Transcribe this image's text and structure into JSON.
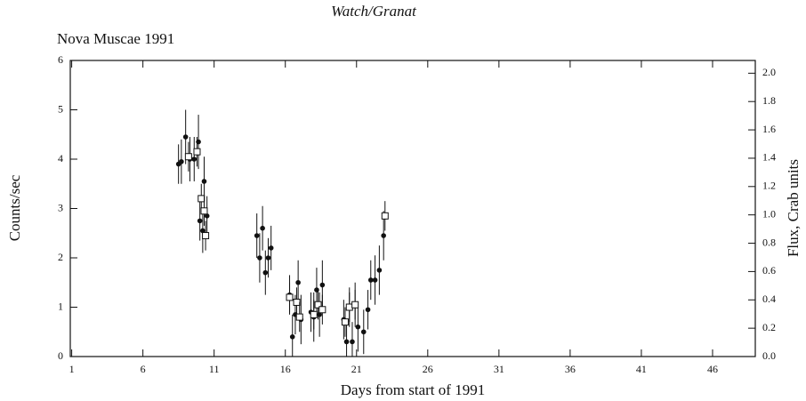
{
  "chart_data": {
    "type": "scatter",
    "title": "Watch/Granat",
    "subtitle": "Nova Muscae 1991",
    "x_label": "Days from start of 1991",
    "y_label": "Counts/sec",
    "y2_label": "Flux, Crab units",
    "xlim": [
      0.9,
      49
    ],
    "xticks": [
      1,
      6,
      11,
      16,
      21,
      26,
      31,
      36,
      41,
      46
    ],
    "ylim": [
      0,
      6
    ],
    "yticks": [
      0,
      1,
      2,
      3,
      4,
      5,
      6
    ],
    "y2lim": [
      0,
      2.09
    ],
    "y2ticks": [
      {
        "value": 0,
        "label": "0.0"
      },
      0.2,
      0.4,
      0.6,
      0.8,
      {
        "value": 1,
        "label": "1.0"
      },
      1.2,
      1.4,
      1.6,
      1.8,
      {
        "value": 2,
        "label": "2.0"
      }
    ],
    "series": [
      {
        "marker": "circle",
        "color": "#111111",
        "x": [
          8.5,
          8.7,
          9.0,
          9.3,
          9.6,
          9.9,
          10.0,
          10.2,
          10.3,
          10.5,
          14.0,
          14.2,
          14.4,
          14.6,
          14.8,
          15.0,
          16.3,
          16.5,
          16.7,
          16.9,
          17.1,
          17.8,
          18.0,
          18.2,
          18.4,
          18.6,
          20.1,
          20.3,
          20.5,
          20.7,
          20.9,
          21.1,
          21.5,
          21.8,
          22.0,
          22.3,
          22.6,
          22.9
        ],
        "values": [
          3.9,
          3.95,
          4.45,
          4.0,
          4.0,
          4.35,
          2.75,
          2.55,
          3.55,
          2.85,
          2.45,
          2.0,
          2.6,
          1.7,
          2.0,
          2.2,
          1.25,
          0.4,
          0.85,
          1.5,
          0.75,
          0.9,
          0.8,
          1.35,
          0.85,
          1.45,
          0.75,
          0.3,
          1.0,
          0.3,
          1.05,
          0.6,
          0.5,
          0.95,
          1.55,
          1.55,
          1.75,
          2.45
        ],
        "errors": [
          0.4,
          0.45,
          0.55,
          0.45,
          0.45,
          0.55,
          0.4,
          0.45,
          0.5,
          0.4,
          0.45,
          0.5,
          0.45,
          0.45,
          0.4,
          0.45,
          0.4,
          0.45,
          0.4,
          0.45,
          0.5,
          0.4,
          0.5,
          0.45,
          0.45,
          0.5,
          0.4,
          0.45,
          0.4,
          0.4,
          0.45,
          0.5,
          0.45,
          0.4,
          0.4,
          0.5,
          0.5,
          0.5
        ]
      },
      {
        "marker": "square",
        "color": "#111111",
        "x": [
          9.2,
          9.8,
          10.1,
          10.3,
          10.4,
          16.3,
          16.8,
          17.0,
          18.0,
          18.3,
          18.6,
          20.2,
          20.5,
          20.9,
          23.0
        ],
        "values": [
          4.05,
          4.15,
          3.2,
          2.95,
          2.45,
          1.2,
          1.1,
          0.8,
          0.85,
          1.05,
          0.95,
          0.7,
          1.0,
          1.05,
          2.85
        ],
        "errors": [
          0.3,
          0.3,
          0.3,
          0.3,
          0.3,
          0.3,
          0.3,
          0.3,
          0.3,
          0.3,
          0.3,
          0.3,
          0.3,
          0.3,
          0.3
        ]
      }
    ]
  }
}
